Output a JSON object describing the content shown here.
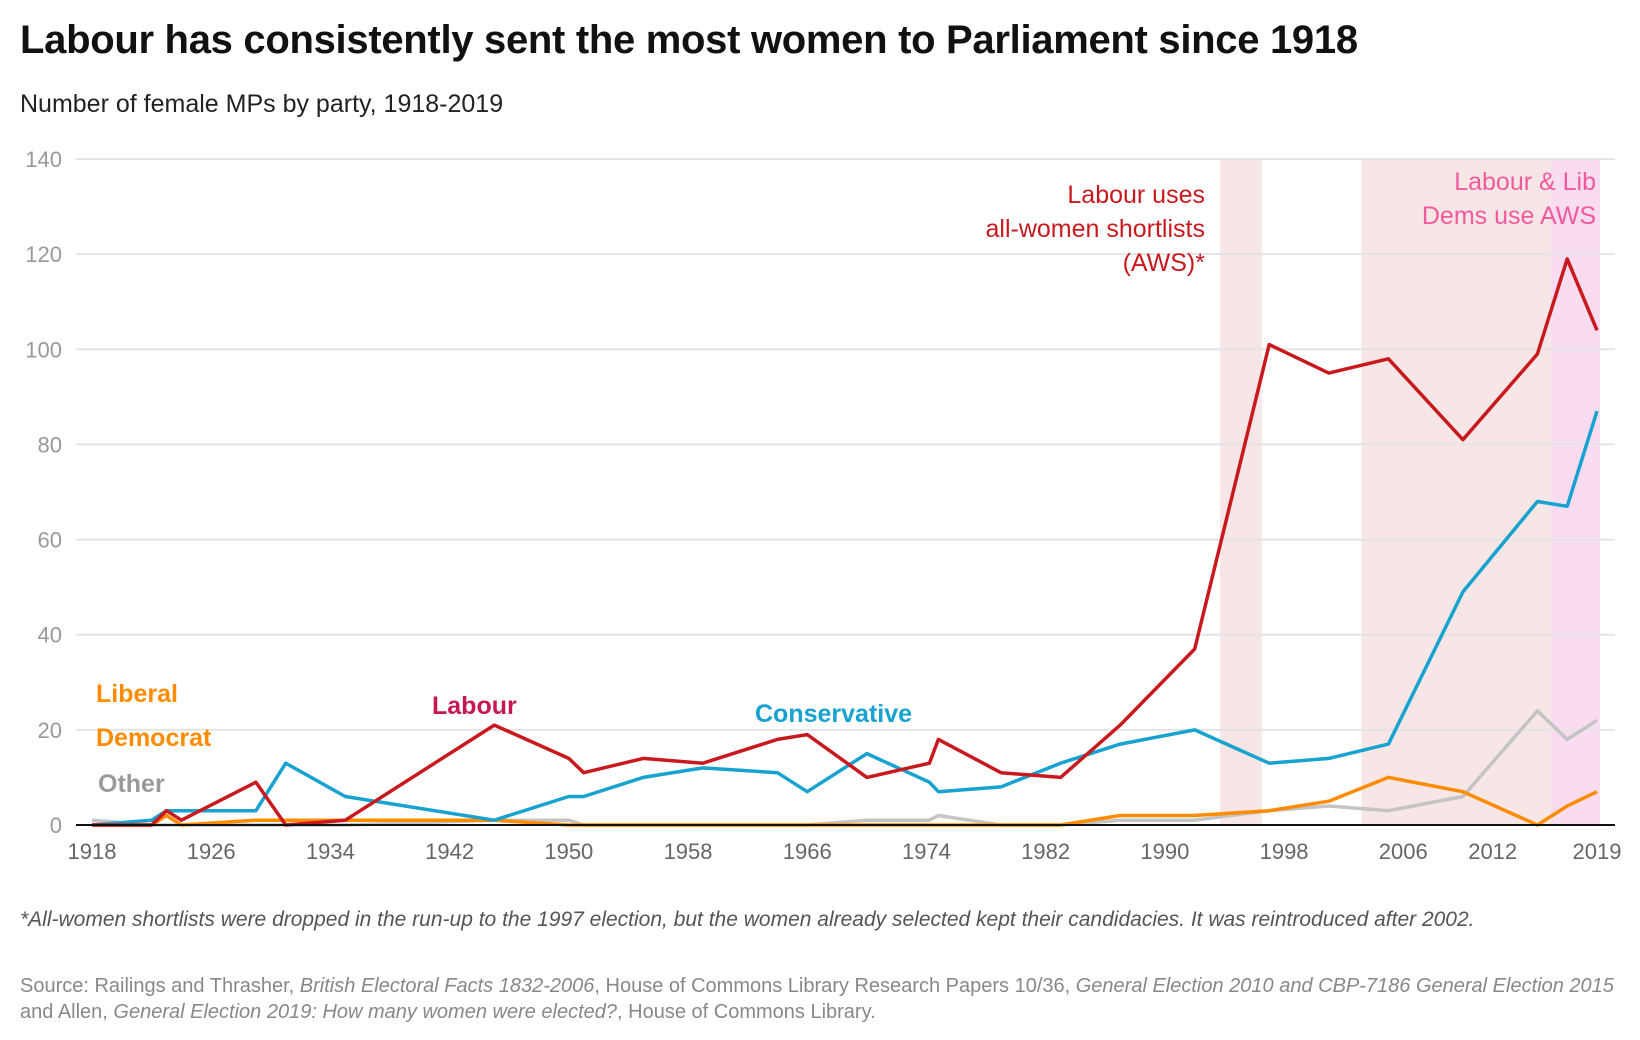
{
  "title": "Labour has consistently sent the most women to Parliament since 1918",
  "subtitle": "Number of female MPs by party, 1918-2019",
  "footnote": "*All-women shortlists were dropped in the run-up to the 1997 election, but the women already selected kept their candidacies. It was reintroduced after 2002.",
  "source": {
    "parts": [
      {
        "t": "Source: Railings and Thrasher, ",
        "i": false
      },
      {
        "t": "British Electoral Facts 1832-2006",
        "i": true
      },
      {
        "t": ", House of Commons Library Research Papers 10/36, ",
        "i": false
      },
      {
        "t": "General Election 2010 and CBP-7186 General Election 2015",
        "i": true
      },
      {
        "t": " and Allen, ",
        "i": false
      },
      {
        "t": "General Election 2019: How many women were elected?",
        "i": true
      },
      {
        "t": ", House of Commons Library.",
        "i": false
      }
    ]
  },
  "chart_data": {
    "type": "line",
    "title": "Labour has consistently sent the most women to Parliament since 1918",
    "xlabel": "",
    "ylabel": "",
    "xlim": [
      1918,
      2019
    ],
    "ylim": [
      0,
      140
    ],
    "yticks": [
      0,
      20,
      40,
      60,
      80,
      100,
      120,
      140
    ],
    "xticks": [
      1918,
      1926,
      1934,
      1942,
      1950,
      1958,
      1966,
      1974,
      1982,
      1990,
      1998,
      2006,
      2012,
      2019
    ],
    "grid": true,
    "x": [
      1918,
      1922,
      1923,
      1924,
      1929,
      1931,
      1935,
      1945,
      1950,
      1951,
      1955,
      1959,
      1964,
      1966,
      1970,
      1974.2,
      1974.8,
      1979,
      1983,
      1987,
      1992,
      1997,
      2001,
      2005,
      2010,
      2015,
      2017,
      2019
    ],
    "series": [
      {
        "name": "Other",
        "color": "#c4c4c4",
        "values": [
          1,
          0,
          0,
          0,
          0,
          0,
          0,
          1,
          1,
          0,
          0,
          0,
          0,
          0,
          1,
          1,
          2,
          0,
          0,
          1,
          1,
          3,
          4,
          3,
          6,
          24,
          18,
          22
        ]
      },
      {
        "name": "Liberal Democrat",
        "color": "#ff8c00",
        "values": [
          0,
          0,
          2,
          0,
          1,
          1,
          1,
          1,
          0,
          0,
          0,
          0,
          0,
          0,
          0,
          0,
          0,
          0,
          0,
          2,
          2,
          3,
          5,
          10,
          7,
          0,
          4,
          7
        ]
      },
      {
        "name": "Conservative",
        "color": "#17a2d0",
        "values": [
          0,
          1,
          3,
          3,
          3,
          13,
          6,
          1,
          6,
          6,
          10,
          12,
          11,
          7,
          15,
          9,
          7,
          8,
          13,
          17,
          20,
          13,
          14,
          17,
          49,
          68,
          67,
          87
        ]
      },
      {
        "name": "Labour",
        "color": "#c81a1e",
        "values": [
          0,
          0,
          3,
          1,
          9,
          0,
          1,
          21,
          14,
          11,
          14,
          13,
          18,
          19,
          10,
          13,
          18,
          11,
          10,
          21,
          37,
          101,
          95,
          98,
          81,
          99,
          119,
          104
        ]
      }
    ],
    "labels": [
      {
        "text": "Liberal",
        "series": "Liberal Democrat",
        "color": "#ff8c00"
      },
      {
        "text": "Democrat",
        "series": "Liberal Democrat",
        "color": "#ff8c00"
      },
      {
        "text": "Other",
        "series": "Other",
        "color": "#999999"
      },
      {
        "text": "Labour",
        "series": "Labour",
        "color": "#c4184f"
      },
      {
        "text": "Conservative",
        "series": "Conservative",
        "color": "#17a2d0"
      }
    ],
    "bands": [
      {
        "from": 1993.7,
        "to": 1996.5,
        "color": "#f6e6e6"
      },
      {
        "from": 2003.2,
        "to": 2015.9,
        "color": "#f6e6e6"
      },
      {
        "from": 2015.9,
        "to": 2019.2,
        "color": "#f9dcef"
      }
    ],
    "annotations": [
      {
        "lines": [
          "Labour uses",
          "all-women shortlists",
          "(AWS)*"
        ],
        "color": "#c81a1e"
      },
      {
        "lines": [
          "Labour & Lib",
          "Dems use AWS"
        ],
        "color": "#f35a9e"
      }
    ]
  }
}
